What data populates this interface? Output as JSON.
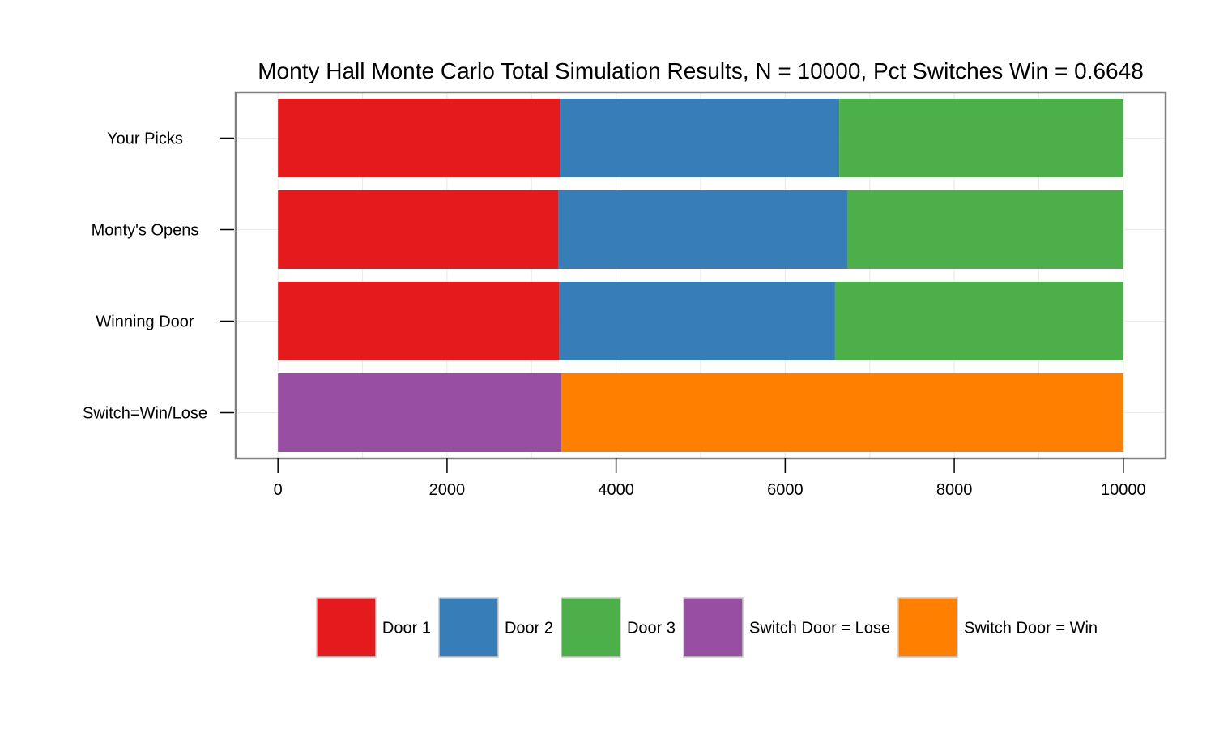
{
  "chart_data": {
    "type": "bar",
    "orientation": "horizontal",
    "stacked": true,
    "title": "Monty Hall Monte Carlo Total Simulation Results, N = 10000, Pct Switches Win = 0.6648",
    "xlabel": "",
    "ylabel": "",
    "xlim": [
      -500,
      10500
    ],
    "x_ticks": [
      0,
      2000,
      4000,
      6000,
      8000,
      10000
    ],
    "x_tick_labels": [
      "0",
      "2000",
      "4000",
      "6000",
      "8000",
      "10000"
    ],
    "grid": true,
    "legend_position": "bottom",
    "categories": [
      "Your Picks",
      "Monty's Opens",
      "Winning Door",
      "Switch=Win/Lose"
    ],
    "series": [
      {
        "name": "Door 1",
        "color": "#E41A1C",
        "values": [
          3340,
          3320,
          3330,
          0
        ]
      },
      {
        "name": "Door 2",
        "color": "#377EB8",
        "values": [
          3300,
          3420,
          3260,
          0
        ]
      },
      {
        "name": "Door 3",
        "color": "#4DAF4A",
        "values": [
          3360,
          3260,
          3410,
          0
        ]
      },
      {
        "name": "Switch Door = Lose",
        "color": "#984EA3",
        "values": [
          0,
          0,
          0,
          3352
        ]
      },
      {
        "name": "Switch Door = Win",
        "color": "#FF7F00",
        "values": [
          0,
          0,
          0,
          6648
        ]
      }
    ]
  }
}
